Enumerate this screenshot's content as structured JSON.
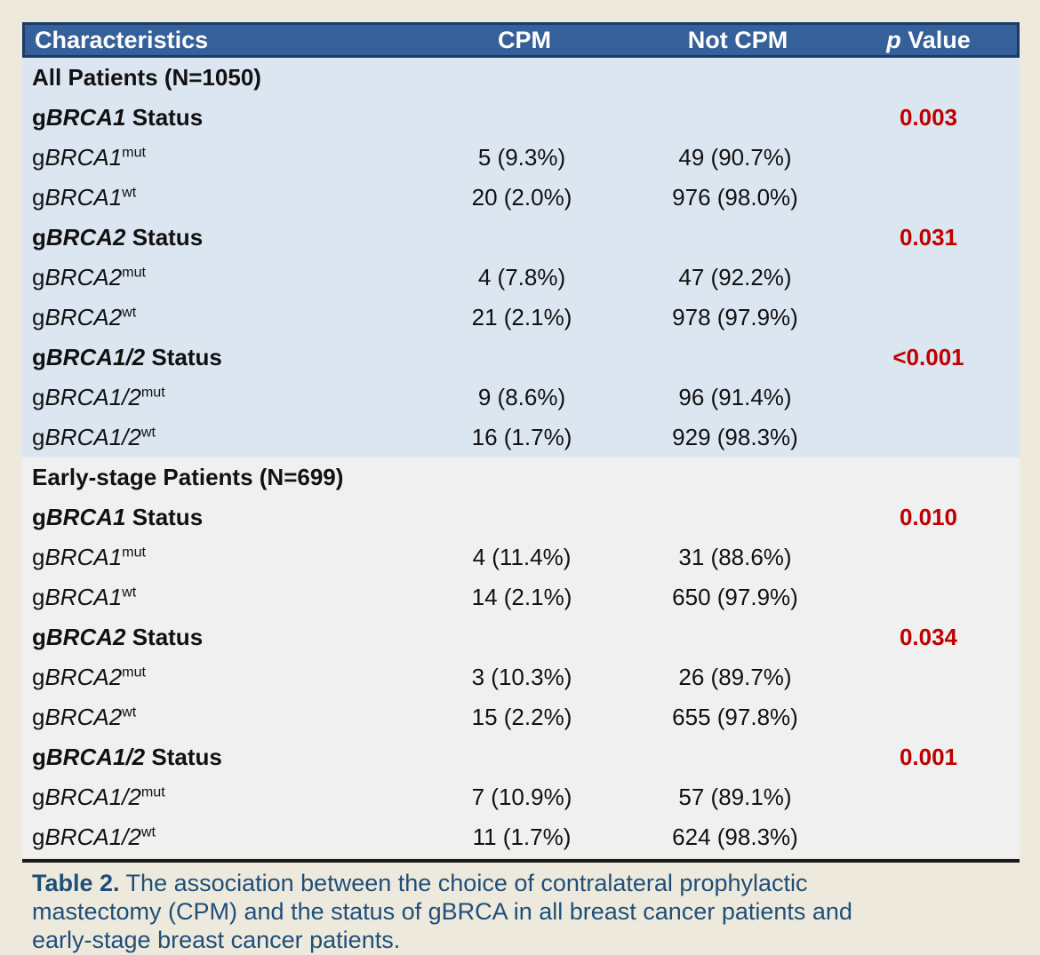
{
  "header": {
    "characteristics": "Characteristics",
    "cpm": "CPM",
    "not_cpm": "Not CPM",
    "p_italic": "p",
    "p_rest": " Value"
  },
  "sections": [
    {
      "title": "All Patients (N=1050)",
      "groups": [
        {
          "status": {
            "prefix": "g",
            "gene": "BRCA1",
            "suffix": " Status",
            "p_value": "0.003"
          },
          "rows": [
            {
              "prefix": "g",
              "gene": "BRCA1",
              "sup": "mut",
              "cpm": "5 (9.3%)",
              "not_cpm": "49 (90.7%)"
            },
            {
              "prefix": "g",
              "gene": "BRCA1",
              "sup": "wt",
              "cpm": "20 (2.0%)",
              "not_cpm": "976 (98.0%)"
            }
          ]
        },
        {
          "status": {
            "prefix": "g",
            "gene": "BRCA2",
            "suffix": " Status",
            "p_value": "0.031"
          },
          "rows": [
            {
              "prefix": "g",
              "gene": "BRCA2",
              "sup": "mut",
              "cpm": "4 (7.8%)",
              "not_cpm": "47 (92.2%)"
            },
            {
              "prefix": "g",
              "gene": "BRCA2",
              "sup": "wt",
              "cpm": "21 (2.1%)",
              "not_cpm": "978 (97.9%)"
            }
          ]
        },
        {
          "status": {
            "prefix": "g",
            "gene": "BRCA1/2",
            "suffix": " Status",
            "p_value": "<0.001"
          },
          "rows": [
            {
              "prefix": "g",
              "gene": "BRCA1/2",
              "sup": "mut",
              "cpm": "9 (8.6%)",
              "not_cpm": "96 (91.4%)"
            },
            {
              "prefix": "g",
              "gene": "BRCA1/2",
              "sup": "wt",
              "cpm": "16 (1.7%)",
              "not_cpm": "929 (98.3%)"
            }
          ]
        }
      ]
    },
    {
      "title": "Early-stage Patients (N=699)",
      "groups": [
        {
          "status": {
            "prefix": "g",
            "gene": "BRCA1",
            "suffix": " Status",
            "p_value": "0.010"
          },
          "rows": [
            {
              "prefix": "g",
              "gene": "BRCA1",
              "sup": "mut",
              "cpm": "4 (11.4%)",
              "not_cpm": "31 (88.6%)"
            },
            {
              "prefix": "g",
              "gene": "BRCA1",
              "sup": "wt",
              "cpm": "14 (2.1%)",
              "not_cpm": "650 (97.9%)"
            }
          ]
        },
        {
          "status": {
            "prefix": "g",
            "gene": "BRCA2",
            "suffix": " Status",
            "p_value": "0.034"
          },
          "rows": [
            {
              "prefix": "g",
              "gene": "BRCA2",
              "sup": "mut",
              "cpm": "3 (10.3%)",
              "not_cpm": "26 (89.7%)"
            },
            {
              "prefix": "g",
              "gene": "BRCA2",
              "sup": "wt",
              "cpm": "15 (2.2%)",
              "not_cpm": "655 (97.8%)"
            }
          ]
        },
        {
          "status": {
            "prefix": "g",
            "gene": "BRCA1/2",
            "suffix": " Status",
            "p_value": "0.001"
          },
          "rows": [
            {
              "prefix": "g",
              "gene": "BRCA1/2",
              "sup": "mut",
              "cpm": "7 (10.9%)",
              "not_cpm": "57 (89.1%)"
            },
            {
              "prefix": "g",
              "gene": "BRCA1/2",
              "sup": "wt",
              "cpm": "11 (1.7%)",
              "not_cpm": "624 (98.3%)"
            }
          ]
        }
      ]
    }
  ],
  "caption": {
    "prefix": "Table 2.",
    "line1": " The association between the choice of contralateral prophylactic",
    "line2": "mastectomy (CPM) and the status of gBRCA in all breast cancer patients and",
    "line3": "early-stage breast cancer patients."
  },
  "colors": {
    "outer_background": "#EDEADD",
    "header_bg": "#35609A",
    "header_border": "#1B3A66",
    "header_text": "#FFFFFF",
    "all_patients_section_bg": "#DBE6F1",
    "early_stage_section_bg": "#F0F0F0",
    "body_text": "#111111",
    "p_value_red": "#C00000",
    "caption_blue": "#1F4E79",
    "divider_black": "#1A1A1A"
  }
}
